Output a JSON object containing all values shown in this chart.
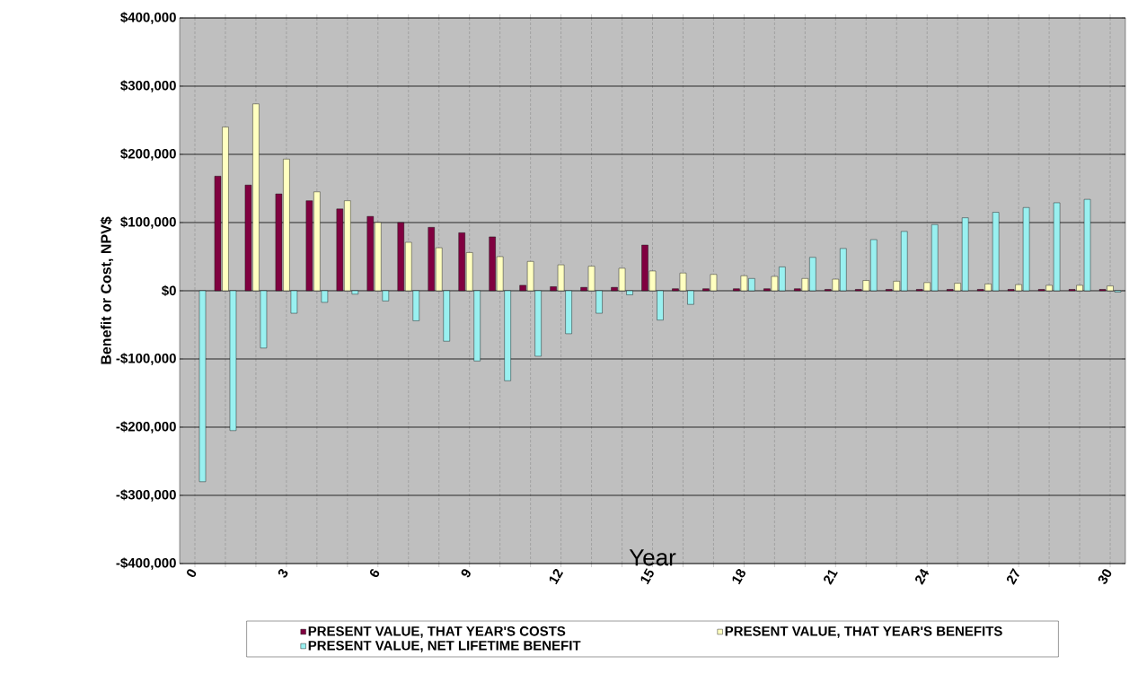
{
  "chart_data": {
    "type": "bar",
    "xlabel": "Year",
    "ylabel": "Benefit or Cost, NPV$",
    "categories": [
      "0",
      null,
      null,
      "3",
      null,
      null,
      "6",
      null,
      null,
      "9",
      null,
      null,
      "12",
      null,
      null,
      "15",
      null,
      null,
      "18",
      null,
      null,
      "21",
      null,
      null,
      "24",
      null,
      null,
      "27",
      null,
      null,
      "30"
    ],
    "series": [
      {
        "name": "PRESENT VALUE, THAT YEAR'S COSTS",
        "color": "#800040",
        "values": [
          null,
          168000,
          155000,
          142000,
          132000,
          120000,
          109000,
          100000,
          93000,
          85000,
          79000,
          8000,
          6000,
          5000,
          5000,
          67000,
          3000,
          3000,
          3000,
          3000,
          3000,
          2000,
          2000,
          2000,
          2000,
          2000,
          2000,
          2000,
          2000,
          2000,
          2000
        ]
      },
      {
        "name": "PRESENT VALUE, THAT YEAR'S BENEFITS",
        "color": "#ffffc0",
        "values": [
          null,
          240000,
          274000,
          193000,
          145000,
          132000,
          100000,
          71000,
          63000,
          56000,
          50000,
          43000,
          38000,
          36000,
          33000,
          29000,
          26000,
          24000,
          22000,
          21000,
          18000,
          17000,
          15000,
          14000,
          12000,
          11000,
          10000,
          9000,
          8000,
          8000,
          7000
        ]
      },
      {
        "name": "PRESENT VALUE, NET LIFETIME BENEFIT",
        "color": "#99f0f0",
        "values": [
          -280000,
          -205000,
          -84000,
          -33000,
          -17000,
          -5000,
          -15000,
          -44000,
          -74000,
          -103000,
          -132000,
          -96000,
          -63000,
          -33000,
          -6000,
          -43000,
          -20000,
          null,
          18000,
          35000,
          49000,
          62000,
          75000,
          87000,
          97000,
          107000,
          115000,
          122000,
          129000,
          134000,
          -2000
        ]
      }
    ],
    "ylim": [
      -400000,
      400000
    ],
    "yticks": [
      {
        "value": -400000,
        "label": "-$400,000"
      },
      {
        "value": -300000,
        "label": "-$300,000"
      },
      {
        "value": -200000,
        "label": "-$200,000"
      },
      {
        "value": -100000,
        "label": "-$100,000"
      },
      {
        "value": 0,
        "label": "$0"
      },
      {
        "value": 100000,
        "label": "$100,000"
      },
      {
        "value": 200000,
        "label": "$200,000"
      },
      {
        "value": 300000,
        "label": "$300,000"
      },
      {
        "value": 400000,
        "label": "$400,000"
      }
    ],
    "grid": true,
    "legend": "bottom"
  }
}
